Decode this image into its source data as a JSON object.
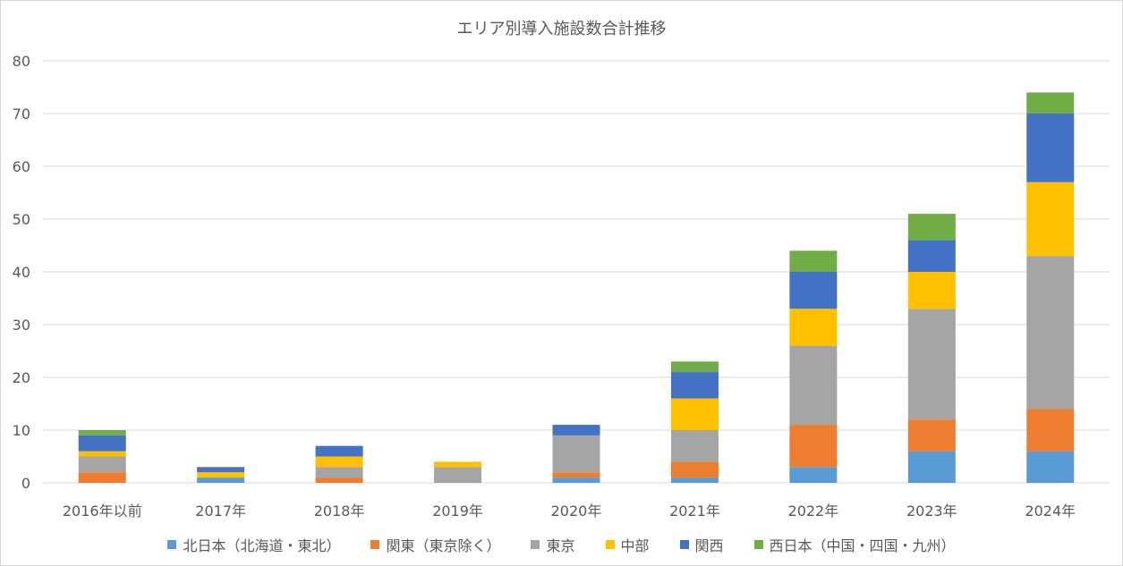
{
  "chart_data": {
    "type": "bar",
    "stacked": true,
    "title": "エリア別導入施設数合計推移",
    "categories": [
      "2016年以前",
      "2017年",
      "2018年",
      "2019年",
      "2020年",
      "2021年",
      "2022年",
      "2023年",
      "2024年"
    ],
    "ylim": [
      0,
      80
    ],
    "yticks": [
      "0",
      "10",
      "20",
      "30",
      "40",
      "50",
      "60",
      "70",
      "80"
    ],
    "grid": true,
    "legend_position": "bottom",
    "series": [
      {
        "name": "北日本（北海道・東北）",
        "color": "#5b9bd5",
        "values": [
          0,
          1,
          0,
          0,
          1,
          1,
          3,
          6,
          6
        ]
      },
      {
        "name": "関東（東京除く）",
        "color": "#ed7d31",
        "values": [
          2,
          0,
          1,
          0,
          1,
          3,
          8,
          6,
          8
        ]
      },
      {
        "name": "東京",
        "color": "#a5a5a5",
        "values": [
          3,
          0,
          2,
          3,
          7,
          6,
          15,
          21,
          29
        ]
      },
      {
        "name": "中部",
        "color": "#ffc000",
        "values": [
          1,
          1,
          2,
          1,
          0,
          6,
          7,
          7,
          14
        ]
      },
      {
        "name": "関西",
        "color": "#4472c4",
        "values": [
          3,
          1,
          2,
          0,
          2,
          5,
          7,
          6,
          13
        ]
      },
      {
        "name": "西日本（中国・四国・九州）",
        "color": "#70ad47",
        "values": [
          1,
          0,
          0,
          0,
          0,
          2,
          4,
          5,
          4
        ]
      }
    ]
  }
}
